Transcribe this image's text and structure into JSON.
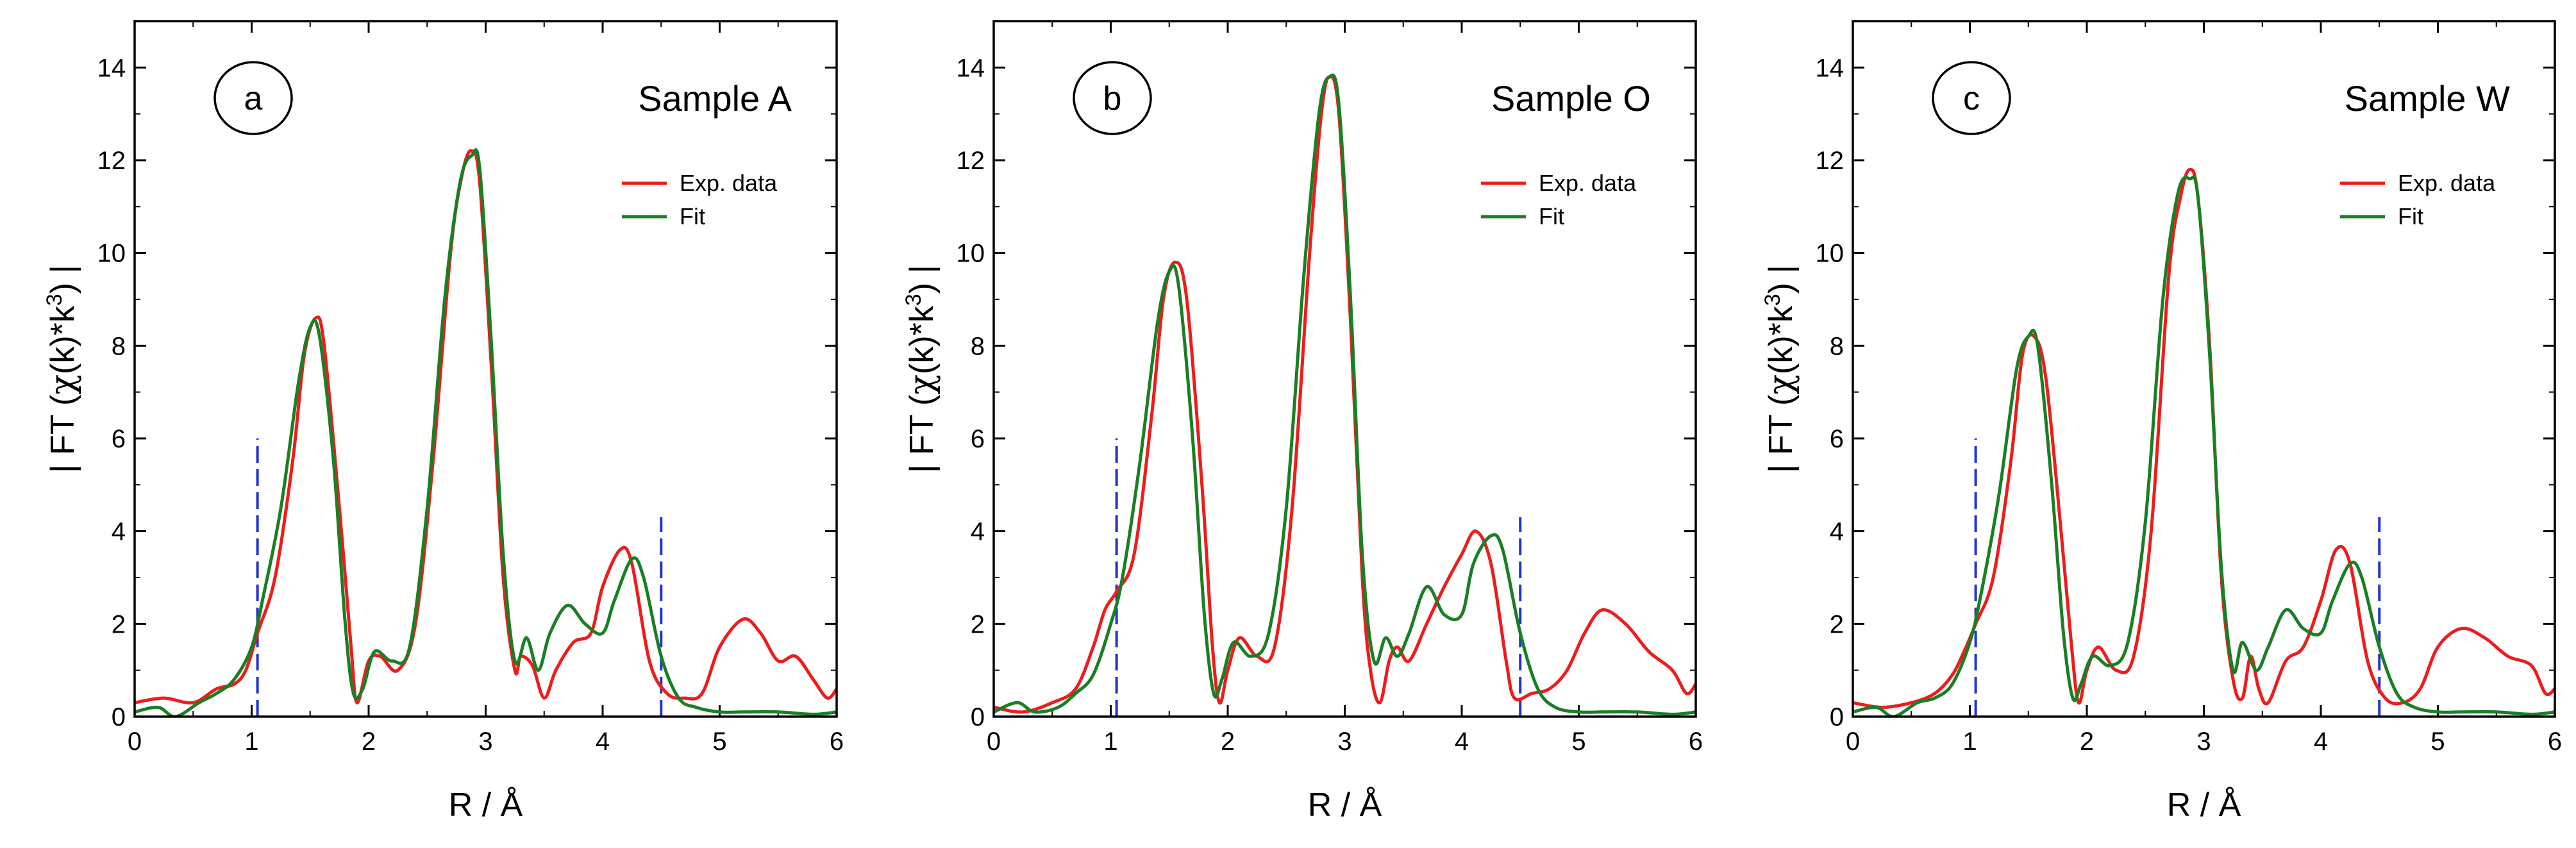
{
  "chart_data": [
    {
      "type": "line",
      "panel_label": "a",
      "title": "Sample A",
      "xlabel": "R / Å",
      "ylabel_prefix": "| FT (",
      "ylabel_chi": "χ",
      "ylabel_mid": "(k)*k",
      "ylabel_exp": "3",
      "ylabel_suffix": ") |",
      "xlim": [
        0,
        6
      ],
      "ylim": [
        0,
        15
      ],
      "xticks": [
        0,
        1,
        2,
        3,
        4,
        5,
        6
      ],
      "yticks": [
        0,
        2,
        4,
        6,
        8,
        10,
        12,
        14
      ],
      "colors": {
        "exp": "#ee1c1c",
        "fit": "#1a7f24",
        "marker": "#2233cc"
      },
      "legend": {
        "exp_label": "Exp. data",
        "fit_label": "Fit",
        "position": "right"
      },
      "fit_range_markers": [
        {
          "x": 1.05,
          "ymax": 6.0
        },
        {
          "x": 4.5,
          "ymax": 4.3
        }
      ],
      "series": [
        {
          "name": "Exp. data",
          "x": [
            0,
            0.25,
            0.5,
            0.7,
            0.85,
            0.95,
            1.05,
            1.2,
            1.35,
            1.45,
            1.55,
            1.62,
            1.75,
            1.85,
            1.9,
            2.0,
            2.1,
            2.25,
            2.4,
            2.55,
            2.7,
            2.8,
            2.88,
            2.95,
            3.05,
            3.15,
            3.25,
            3.3,
            3.4,
            3.5,
            3.6,
            3.75,
            3.9,
            4.0,
            4.15,
            4.25,
            4.4,
            4.55,
            4.7,
            4.85,
            5.0,
            5.2,
            5.35,
            5.5,
            5.65,
            5.8,
            5.92,
            6.0
          ],
          "y": [
            0.3,
            0.4,
            0.3,
            0.6,
            0.7,
            1.0,
            1.8,
            3.0,
            5.5,
            7.8,
            8.6,
            8.0,
            4.5,
            1.5,
            0.3,
            1.2,
            1.3,
            1.0,
            2.0,
            5.5,
            10.0,
            11.7,
            12.2,
            11.5,
            7.5,
            3.0,
            1.0,
            1.3,
            1.1,
            0.4,
            1.0,
            1.6,
            1.8,
            2.8,
            3.6,
            3.3,
            1.2,
            0.5,
            0.4,
            0.5,
            1.5,
            2.1,
            1.8,
            1.2,
            1.3,
            0.8,
            0.4,
            0.6
          ]
        },
        {
          "name": "Fit",
          "x": [
            0,
            0.2,
            0.35,
            0.55,
            0.7,
            0.85,
            1.0,
            1.1,
            1.25,
            1.4,
            1.5,
            1.58,
            1.7,
            1.8,
            1.87,
            1.95,
            2.05,
            2.2,
            2.35,
            2.5,
            2.65,
            2.78,
            2.88,
            2.95,
            3.05,
            3.15,
            3.25,
            3.35,
            3.45,
            3.55,
            3.7,
            3.85,
            4.0,
            4.1,
            4.25,
            4.35,
            4.5,
            4.65,
            4.8,
            5.0,
            5.2,
            5.5,
            5.8,
            6.0
          ],
          "y": [
            0.1,
            0.2,
            0.0,
            0.3,
            0.5,
            0.8,
            1.5,
            2.6,
            4.5,
            7.2,
            8.4,
            8.2,
            5.5,
            2.0,
            0.5,
            0.6,
            1.4,
            1.2,
            1.5,
            4.5,
            9.0,
            11.5,
            12.1,
            11.8,
            8.0,
            3.5,
            1.2,
            1.7,
            1.0,
            1.8,
            2.4,
            2.0,
            1.8,
            2.5,
            3.4,
            3.0,
            1.3,
            0.4,
            0.2,
            0.1,
            0.1,
            0.1,
            0.05,
            0.1
          ]
        }
      ]
    },
    {
      "type": "line",
      "panel_label": "b",
      "title": "Sample O",
      "xlabel": "R / Å",
      "ylabel_prefix": "| FT (",
      "ylabel_chi": "χ",
      "ylabel_mid": "(k)*k",
      "ylabel_exp": "3",
      "ylabel_suffix": ") |",
      "xlim": [
        0,
        6
      ],
      "ylim": [
        0,
        15
      ],
      "xticks": [
        0,
        1,
        2,
        3,
        4,
        5,
        6
      ],
      "yticks": [
        0,
        2,
        4,
        6,
        8,
        10,
        12,
        14
      ],
      "colors": {
        "exp": "#ee1c1c",
        "fit": "#1a7f24",
        "marker": "#2233cc"
      },
      "legend": {
        "exp_label": "Exp. data",
        "fit_label": "Fit",
        "position": "right"
      },
      "fit_range_markers": [
        {
          "x": 1.05,
          "ymax": 6.0
        },
        {
          "x": 4.5,
          "ymax": 4.3
        }
      ],
      "series": [
        {
          "name": "Exp. data",
          "x": [
            0,
            0.25,
            0.5,
            0.7,
            0.85,
            0.95,
            1.05,
            1.2,
            1.35,
            1.45,
            1.55,
            1.65,
            1.78,
            1.87,
            1.93,
            2.0,
            2.1,
            2.25,
            2.4,
            2.55,
            2.7,
            2.8,
            2.87,
            2.95,
            3.05,
            3.15,
            3.22,
            3.3,
            3.38,
            3.45,
            3.55,
            3.7,
            3.85,
            4.0,
            4.12,
            4.25,
            4.38,
            4.45,
            4.6,
            4.75,
            4.9,
            5.05,
            5.2,
            5.4,
            5.6,
            5.8,
            5.92,
            6.0
          ],
          "y": [
            0.2,
            0.1,
            0.3,
            0.6,
            1.5,
            2.3,
            2.7,
            3.5,
            6.5,
            9.0,
            9.8,
            9.0,
            5.0,
            1.5,
            0.3,
            1.0,
            1.7,
            1.3,
            1.5,
            4.5,
            10.0,
            13.0,
            13.8,
            13.0,
            8.5,
            3.0,
            1.0,
            0.3,
            1.2,
            1.5,
            1.2,
            2.0,
            2.8,
            3.5,
            4.0,
            3.3,
            1.2,
            0.4,
            0.5,
            0.6,
            1.0,
            1.8,
            2.3,
            2.0,
            1.4,
            1.0,
            0.5,
            0.7
          ]
        },
        {
          "name": "Fit",
          "x": [
            0,
            0.2,
            0.35,
            0.55,
            0.7,
            0.85,
            1.0,
            1.1,
            1.25,
            1.4,
            1.5,
            1.58,
            1.7,
            1.8,
            1.88,
            1.95,
            2.05,
            2.2,
            2.35,
            2.5,
            2.65,
            2.78,
            2.87,
            2.95,
            3.05,
            3.15,
            3.25,
            3.35,
            3.45,
            3.55,
            3.7,
            3.85,
            4.0,
            4.1,
            4.25,
            4.35,
            4.5,
            4.65,
            4.8,
            5.0,
            5.2,
            5.5,
            5.8,
            6.0
          ],
          "y": [
            0.1,
            0.3,
            0.1,
            0.2,
            0.5,
            0.9,
            2.0,
            3.0,
            5.5,
            8.5,
            9.6,
            9.3,
            6.0,
            2.2,
            0.5,
            0.8,
            1.6,
            1.3,
            1.8,
            4.5,
            9.5,
            13.0,
            13.8,
            13.2,
            9.0,
            3.5,
            1.2,
            1.7,
            1.3,
            1.8,
            2.8,
            2.2,
            2.2,
            3.3,
            3.9,
            3.6,
            1.8,
            0.6,
            0.2,
            0.1,
            0.1,
            0.1,
            0.05,
            0.1
          ]
        }
      ]
    },
    {
      "type": "line",
      "panel_label": "c",
      "title": "Sample W",
      "xlabel": "R / Å",
      "ylabel_prefix": "| FT (",
      "ylabel_chi": "χ",
      "ylabel_mid": "(k)*k",
      "ylabel_exp": "3",
      "ylabel_suffix": ") |",
      "xlim": [
        0,
        6
      ],
      "ylim": [
        0,
        15
      ],
      "xticks": [
        0,
        1,
        2,
        3,
        4,
        5,
        6
      ],
      "yticks": [
        0,
        2,
        4,
        6,
        8,
        10,
        12,
        14
      ],
      "colors": {
        "exp": "#ee1c1c",
        "fit": "#1a7f24",
        "marker": "#2233cc"
      },
      "legend": {
        "exp_label": "Exp. data",
        "fit_label": "Fit",
        "position": "right"
      },
      "fit_range_markers": [
        {
          "x": 1.05,
          "ymax": 6.0
        },
        {
          "x": 4.5,
          "ymax": 4.3
        }
      ],
      "series": [
        {
          "name": "Exp. data",
          "x": [
            0,
            0.25,
            0.5,
            0.7,
            0.85,
            0.95,
            1.05,
            1.2,
            1.35,
            1.45,
            1.55,
            1.65,
            1.78,
            1.87,
            1.93,
            2.0,
            2.1,
            2.25,
            2.4,
            2.55,
            2.7,
            2.8,
            2.88,
            2.95,
            3.05,
            3.15,
            3.25,
            3.33,
            3.4,
            3.47,
            3.55,
            3.7,
            3.85,
            4.0,
            4.13,
            4.25,
            4.4,
            4.55,
            4.7,
            4.85,
            5.0,
            5.2,
            5.4,
            5.6,
            5.8,
            5.92,
            6.0
          ],
          "y": [
            0.3,
            0.2,
            0.3,
            0.5,
            0.9,
            1.4,
            2.0,
            3.0,
            5.5,
            7.8,
            8.2,
            7.3,
            4.0,
            1.5,
            0.3,
            1.0,
            1.5,
            1.0,
            1.3,
            4.0,
            9.5,
            11.2,
            11.8,
            11.2,
            8.0,
            3.0,
            0.8,
            0.4,
            1.3,
            0.6,
            0.3,
            1.2,
            1.5,
            2.5,
            3.6,
            3.3,
            1.2,
            0.4,
            0.3,
            0.6,
            1.5,
            1.9,
            1.7,
            1.3,
            1.1,
            0.5,
            0.6
          ]
        },
        {
          "name": "Fit",
          "x": [
            0,
            0.2,
            0.35,
            0.55,
            0.7,
            0.85,
            1.0,
            1.1,
            1.25,
            1.4,
            1.5,
            1.58,
            1.7,
            1.8,
            1.88,
            1.95,
            2.05,
            2.2,
            2.35,
            2.5,
            2.65,
            2.78,
            2.88,
            2.95,
            3.05,
            3.15,
            3.25,
            3.33,
            3.45,
            3.55,
            3.7,
            3.85,
            4.0,
            4.1,
            4.25,
            4.35,
            4.5,
            4.65,
            4.8,
            5.0,
            5.2,
            5.5,
            5.8,
            6.0
          ],
          "y": [
            0.1,
            0.2,
            0.0,
            0.3,
            0.4,
            0.7,
            1.6,
            2.7,
            4.8,
            7.5,
            8.2,
            8.0,
            5.0,
            1.8,
            0.4,
            0.7,
            1.3,
            1.1,
            1.6,
            4.2,
            9.0,
            11.3,
            11.6,
            11.2,
            7.8,
            3.2,
            1.0,
            1.6,
            1.0,
            1.5,
            2.3,
            1.9,
            1.8,
            2.5,
            3.3,
            3.0,
            1.5,
            0.5,
            0.2,
            0.1,
            0.1,
            0.1,
            0.05,
            0.1
          ]
        }
      ]
    }
  ]
}
